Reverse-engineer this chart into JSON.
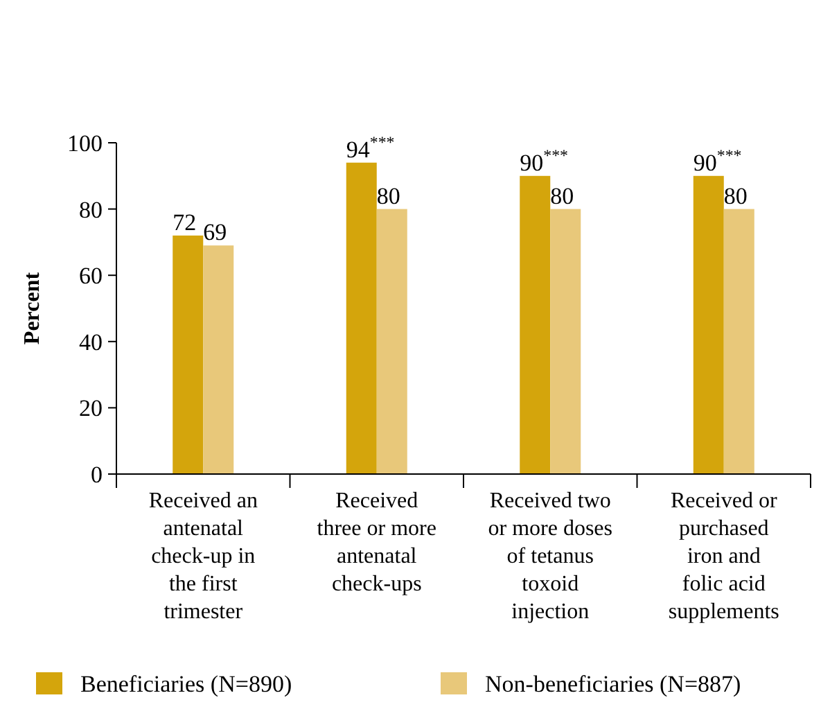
{
  "chart_data": {
    "type": "bar",
    "ylabel": "Percent",
    "categories": [
      "Received an antenatal check-up in the first trimester",
      "Received three or more antenatal check-ups",
      "Received two or more doses of tetanus toxoid injection",
      "Received or purchased iron and folic acid supplements"
    ],
    "series": [
      {
        "name": "Beneficiaries (N=890)",
        "color": "#d4a50c",
        "values": [
          72,
          94,
          90,
          90
        ],
        "value_labels": [
          "72",
          "94$^{***}$",
          "90$^{***}$",
          "90$^{***}$"
        ]
      },
      {
        "name": "Non-beneficiaries (N=887)",
        "color": "#e8c87a",
        "values": [
          69,
          80,
          80,
          80
        ],
        "value_labels": [
          "69",
          "80",
          "80",
          "80"
        ]
      }
    ],
    "ylim": [
      0,
      100
    ],
    "yticks": [
      0,
      20,
      40,
      60,
      80,
      100
    ],
    "grid": false,
    "legend": "bottom"
  }
}
